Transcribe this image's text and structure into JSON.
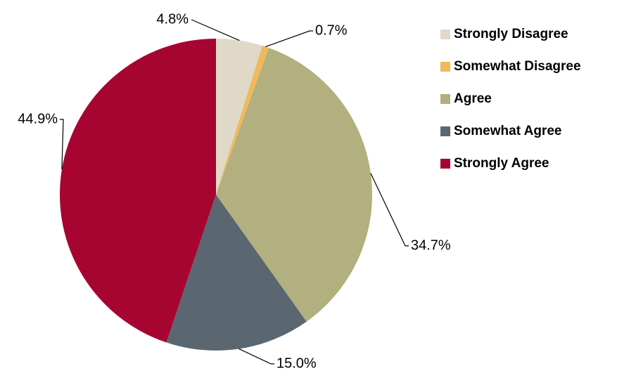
{
  "chart_data": {
    "type": "pie",
    "categories": [
      "Strongly Disagree",
      "Somewhat Disagree",
      "Agree",
      "Somewhat Agree",
      "Strongly Agree"
    ],
    "values": [
      4.8,
      0.7,
      34.7,
      15.0,
      44.9
    ],
    "value_labels": [
      "4.8%",
      "0.7%",
      "34.7%",
      "15.0%",
      "44.9%"
    ],
    "colors": [
      "#e0d9c8",
      "#f0b95a",
      "#b1b07e",
      "#5a6670",
      "#a60532"
    ],
    "legend": "right"
  }
}
